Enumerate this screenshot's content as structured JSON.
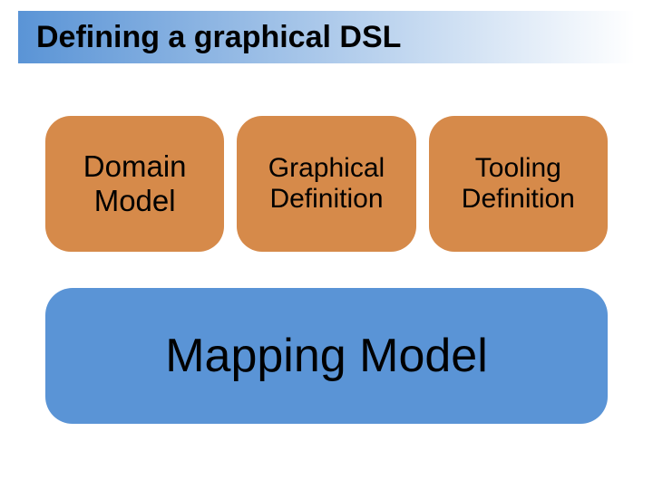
{
  "slide": {
    "title": "Defining a graphical DSL",
    "title_bar": {
      "gradient_from": "#5a94d6",
      "gradient_to": "#ffffff",
      "text_color": "#000000",
      "fontsize": 34,
      "fontweight": "bold"
    },
    "background_color": "#ffffff",
    "top_row": {
      "card_bg": "#d68a4a",
      "card_text_color": "#000000",
      "border_radius": 28,
      "gap": 14,
      "cards": [
        {
          "label": "Domain\nModel",
          "fontsize": 33
        },
        {
          "label": "Graphical\nDefinition",
          "fontsize": 30
        },
        {
          "label": "Tooling\nDefinition",
          "fontsize": 30
        }
      ]
    },
    "bottom_card": {
      "label": "Mapping Model",
      "bg": "#5a94d6",
      "text_color": "#000000",
      "fontsize": 52,
      "border_radius": 30
    }
  }
}
